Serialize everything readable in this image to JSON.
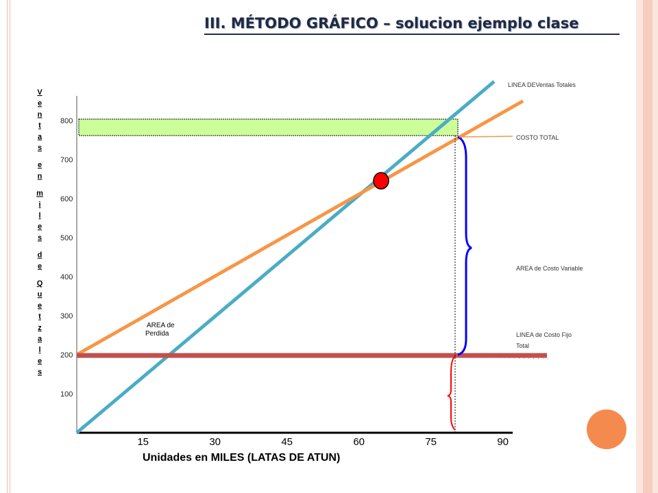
{
  "slide": {
    "title": "III. MÉTODO GRÁFICO – solucion ejemplo clase"
  },
  "colors": {
    "ventas_line": "#4bacc6",
    "costo_total_line": "#f79646",
    "costo_fijo_line": "#c0504d",
    "brace_variable": "#0000ff",
    "brace_fijo": "#ff0000",
    "break_even_point": "#ff0000",
    "top_band_fill": "#ccff99",
    "accent_border": "#f2b8a4"
  },
  "chart_data": {
    "type": "line",
    "title": "",
    "xlabel": "Unidades en MILES  (LATAS DE ATUN)",
    "ylabel": "Ventas en miles de Quetzales",
    "x_ticks": [
      "15",
      "30",
      "45",
      "60",
      "75",
      "90"
    ],
    "y_ticks": [
      "100",
      "200",
      "300",
      "400",
      "500",
      "600",
      "700",
      "800"
    ],
    "xlim": [
      0,
      90
    ],
    "ylim": [
      0,
      850
    ],
    "grid": false,
    "series": [
      {
        "name": "LINEA DEVentas Totales",
        "x": [
          0,
          87
        ],
        "y": [
          0,
          900
        ]
      },
      {
        "name": "COSTO TOTAL",
        "x": [
          0,
          93
        ],
        "y": [
          200,
          850
        ]
      },
      {
        "name": "LINEA de Costo Fijo Total",
        "x": [
          0,
          98
        ],
        "y": [
          198,
          198
        ]
      }
    ],
    "break_even_point": {
      "x": 63,
      "y": 630
    },
    "annotations": {
      "ventas_totales": "LINEA DEVentas Totales",
      "costo_total": "COSTO TOTAL",
      "area_costo_variable": "AREA de Costo Variable",
      "costo_fijo_line1": "LINEA de Costo Fijo",
      "costo_fijo_line2": "Total",
      "area_perdida_line1": "AREA de",
      "area_perdida_line2": "Perdida"
    },
    "ylabel_letters": [
      "V",
      "e",
      "n",
      "t",
      "a",
      "s",
      "",
      "e",
      "n",
      "",
      "m",
      "i",
      "l",
      "e",
      "s",
      "",
      "d",
      "e",
      "",
      "Q",
      "u",
      "e",
      "t",
      "z",
      "a",
      "l",
      "e",
      "s"
    ]
  }
}
